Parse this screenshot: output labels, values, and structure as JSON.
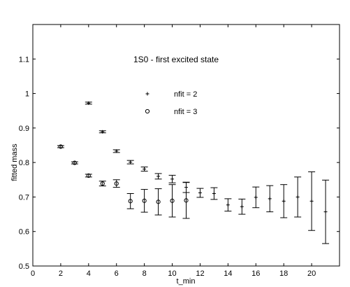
{
  "chart_data": {
    "type": "scatter",
    "title": "1S0 - first excited state",
    "xlabel": "t_min",
    "ylabel": "fitted mass",
    "xlim": [
      0,
      22
    ],
    "ylim": [
      0.5,
      1.2
    ],
    "x_ticks": [
      0,
      2,
      4,
      6,
      8,
      10,
      12,
      14,
      16,
      18,
      20
    ],
    "y_ticks": [
      0.5,
      0.6,
      0.7,
      0.8,
      0.9,
      1.0,
      1.1
    ],
    "x_tick_labels": [
      "0",
      "2",
      "4",
      "6",
      "8",
      "10",
      "12",
      "14",
      "16",
      "18",
      "20"
    ],
    "y_tick_labels": [
      "0.5",
      "0.6",
      "0.7",
      "0.8",
      "0.9",
      "1",
      "1.1"
    ],
    "grid": false,
    "legend_placement": "upper-middle",
    "series": [
      {
        "name": "nfit = 2",
        "marker": "plus",
        "points": [
          {
            "x": 4,
            "y": 0.972,
            "err": 0.003
          },
          {
            "x": 5,
            "y": 0.889,
            "err": 0.003
          },
          {
            "x": 6,
            "y": 0.833,
            "err": 0.004
          },
          {
            "x": 7,
            "y": 0.801,
            "err": 0.005
          },
          {
            "x": 8,
            "y": 0.781,
            "err": 0.006
          },
          {
            "x": 9,
            "y": 0.76,
            "err": 0.008
          },
          {
            "x": 10,
            "y": 0.752,
            "err": 0.011
          },
          {
            "x": 11,
            "y": 0.728,
            "err": 0.015
          },
          {
            "x": 12,
            "y": 0.712,
            "err": 0.013
          },
          {
            "x": 13,
            "y": 0.71,
            "err": 0.017
          },
          {
            "x": 14,
            "y": 0.677,
            "err": 0.018
          },
          {
            "x": 15,
            "y": 0.672,
            "err": 0.022
          },
          {
            "x": 16,
            "y": 0.699,
            "err": 0.03
          },
          {
            "x": 17,
            "y": 0.695,
            "err": 0.038
          },
          {
            "x": 18,
            "y": 0.688,
            "err": 0.048
          },
          {
            "x": 19,
            "y": 0.7,
            "err": 0.058
          },
          {
            "x": 20,
            "y": 0.688,
            "err": 0.085
          },
          {
            "x": 21,
            "y": 0.657,
            "err": 0.092
          }
        ]
      },
      {
        "name": "nfit = 3",
        "marker": "circle",
        "points": [
          {
            "x": 2,
            "y": 0.846,
            "err": 0.003
          },
          {
            "x": 3,
            "y": 0.799,
            "err": 0.003
          },
          {
            "x": 4,
            "y": 0.762,
            "err": 0.004
          },
          {
            "x": 5,
            "y": 0.739,
            "err": 0.007
          },
          {
            "x": 6,
            "y": 0.739,
            "err": 0.011
          },
          {
            "x": 7,
            "y": 0.688,
            "err": 0.022
          },
          {
            "x": 8,
            "y": 0.689,
            "err": 0.033
          },
          {
            "x": 9,
            "y": 0.686,
            "err": 0.038
          },
          {
            "x": 10,
            "y": 0.689,
            "err": 0.047
          },
          {
            "x": 11,
            "y": 0.69,
            "err": 0.052
          }
        ]
      }
    ]
  }
}
